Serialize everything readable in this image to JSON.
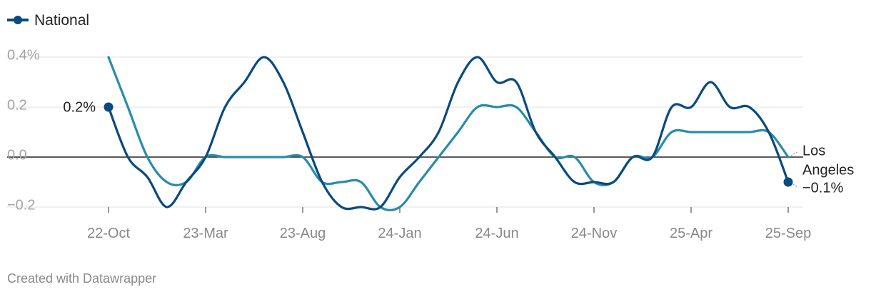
{
  "chart_data": {
    "type": "line",
    "legend": {
      "label": "National",
      "position": "top-left"
    },
    "y_ticks": [
      {
        "value": 0.4,
        "label": "0.4%"
      },
      {
        "value": 0.2,
        "label": "0.2"
      },
      {
        "value": 0.0,
        "label": "0.0"
      },
      {
        "value": -0.2,
        "label": "−0.2"
      }
    ],
    "ylim": [
      -0.2,
      0.4
    ],
    "x_ticks": [
      {
        "index": 0,
        "label": "22-Oct"
      },
      {
        "index": 5,
        "label": "23-Mar"
      },
      {
        "index": 10,
        "label": "23-Aug"
      },
      {
        "index": 15,
        "label": "24-Jan"
      },
      {
        "index": 20,
        "label": "24-Jun"
      },
      {
        "index": 25,
        "label": "24-Nov"
      },
      {
        "index": 30,
        "label": "25-Apr"
      },
      {
        "index": 35,
        "label": "25-Sep"
      }
    ],
    "series": [
      {
        "name": "National",
        "color": "#0b4a7d",
        "values": [
          0.2,
          0.0,
          -0.08,
          -0.2,
          -0.1,
          0.0,
          0.2,
          0.3,
          0.4,
          0.3,
          0.1,
          -0.1,
          -0.2,
          -0.2,
          -0.2,
          -0.08,
          0.0,
          0.1,
          0.3,
          0.4,
          0.3,
          0.3,
          0.1,
          0.0,
          -0.1,
          -0.1,
          -0.1,
          0.0,
          0.0,
          0.2,
          0.2,
          0.3,
          0.2,
          0.2,
          0.1,
          -0.1
        ],
        "start_label": "0.2%",
        "end_label": "−0.1%"
      },
      {
        "name": "Los Angeles",
        "color": "#2a8ca8",
        "values": [
          0.4,
          0.2,
          0.0,
          -0.1,
          -0.1,
          0.0,
          0.0,
          0.0,
          0.0,
          0.0,
          0.0,
          -0.1,
          -0.1,
          -0.1,
          -0.2,
          -0.2,
          -0.1,
          0.0,
          0.1,
          0.2,
          0.2,
          0.2,
          0.1,
          0.0,
          0.0,
          -0.1,
          -0.1,
          0.0,
          0.0,
          0.1,
          0.1,
          0.1,
          0.1,
          0.1,
          0.1,
          0.0
        ],
        "end_label_lines": [
          "Los",
          "Angeles"
        ]
      }
    ],
    "grid": true,
    "zero_line": true
  },
  "footer": "Created with Datawrapper"
}
